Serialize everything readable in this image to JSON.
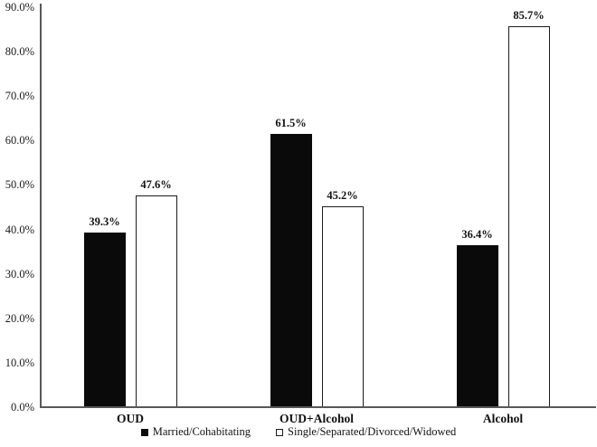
{
  "chart_data": {
    "type": "bar",
    "title": "",
    "categories": [
      "OUD",
      "OUD+Alcohol",
      "Alcohol"
    ],
    "series": [
      {
        "name": "Married/Cohabitating",
        "values": [
          39.3,
          61.5,
          36.4
        ],
        "value_labels": [
          "39.3%",
          "61.5%",
          "36.4%"
        ],
        "fill": "#0a0a0a",
        "style": "filled"
      },
      {
        "name": "Single/Separated/Divorced/Widowed",
        "values": [
          47.6,
          45.2,
          85.7
        ],
        "value_labels": [
          "47.6%",
          "45.2%",
          "85.7%"
        ],
        "fill": "#ffffff",
        "style": "open-outline"
      }
    ],
    "yticks": [
      "90.0%",
      "80.0%",
      "70.0%",
      "60.0%",
      "50.0%",
      "40.0%",
      "30.0%",
      "20.0%",
      "10.0%",
      "0.0%"
    ],
    "ylim": [
      0,
      90
    ],
    "xlabel": "",
    "ylabel": "",
    "grid": false,
    "legend_position": "bottom-center",
    "axis_color": "#585858",
    "text_color": "#111111",
    "background_color": "#ffffff"
  }
}
